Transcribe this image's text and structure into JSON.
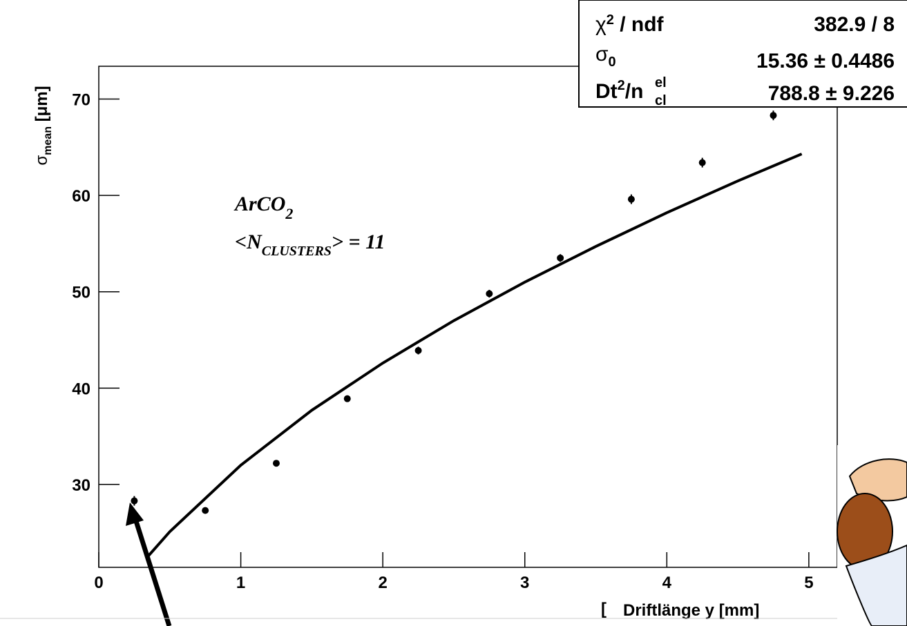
{
  "chart_data": {
    "type": "scatter",
    "x_label": "Driftlänge y [mm]",
    "x_label_fragment": "[",
    "y_label": [
      "σ",
      "mean",
      " [μm]"
    ],
    "annotation": {
      "line1": [
        "ArCO",
        "2"
      ],
      "line2": [
        "<N",
        "CLUSTERS",
        "> = 11"
      ]
    },
    "xlim": [
      0,
      5.2
    ],
    "ylim": [
      21.4,
      73.4
    ],
    "xticks": [
      0,
      1,
      2,
      3,
      4,
      5
    ],
    "yticks": [
      30,
      40,
      50,
      60,
      70
    ],
    "series": [
      {
        "name": null,
        "color": "#000000",
        "x": [
          0.25,
          0.75,
          1.25,
          1.75,
          2.25,
          2.75,
          3.25,
          3.75,
          4.25,
          4.75
        ],
        "values": [
          28.3,
          27.3,
          32.2,
          38.9,
          43.9,
          49.8,
          53.5,
          59.6,
          63.4,
          68.3
        ],
        "errors": [
          0.5,
          0.3,
          0.3,
          0.3,
          0.4,
          0.4,
          0.4,
          0.5,
          0.5,
          0.5
        ]
      },
      {
        "name": null,
        "type": "line",
        "color": "#000000",
        "x": [
          0.35,
          0.5,
          1,
          1.5,
          2,
          2.5,
          3,
          3.5,
          4,
          4.5,
          4.95
        ],
        "values": [
          22.6,
          25.1,
          32.0,
          37.7,
          42.6,
          47.0,
          51.0,
          54.7,
          58.2,
          61.5,
          64.3
        ]
      }
    ],
    "stats": {
      "rows": [
        {
          "label": [
            "χ",
            "2",
            " / ndf"
          ],
          "value": "382.9 / 8"
        },
        {
          "label": [
            "σ",
            "0"
          ],
          "value": "15.36 ± 0.4486"
        },
        {
          "label": [
            "Dt",
            "2",
            "/n",
            "el",
            "cl"
          ],
          "value": "788.8 ± 9.226"
        }
      ]
    }
  }
}
